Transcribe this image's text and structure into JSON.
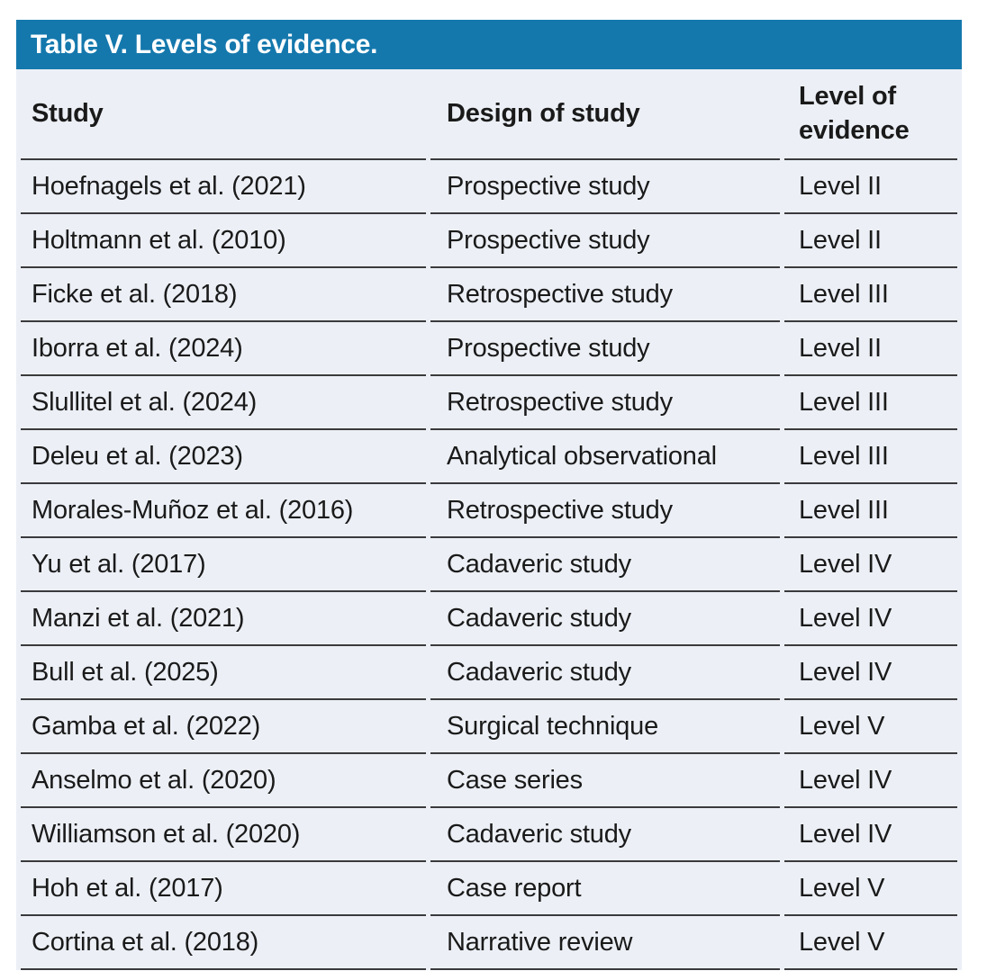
{
  "table": {
    "title": "Table V. Levels of evidence.",
    "columns": [
      "Study",
      "Design of study",
      "Level of evidence"
    ],
    "rows": [
      {
        "study": "Hoefnagels et al. (2021)",
        "design": "Prospective study",
        "level": "Level II"
      },
      {
        "study": "Holtmann et al. (2010)",
        "design": "Prospective study",
        "level": "Level II"
      },
      {
        "study": "Ficke et al. (2018)",
        "design": "Retrospective study",
        "level": "Level III"
      },
      {
        "study": "Iborra et al. (2024)",
        "design": "Prospective study",
        "level": "Level II"
      },
      {
        "study": "Slullitel et al. (2024)",
        "design": "Retrospective study",
        "level": "Level III"
      },
      {
        "study": "Deleu et al. (2023)",
        "design": "Analytical observational",
        "level": "Level III"
      },
      {
        "study": "Morales-Muñoz et al. (2016)",
        "design": "Retrospective study",
        "level": "Level III"
      },
      {
        "study": "Yu et al. (2017)",
        "design": "Cadaveric study",
        "level": "Level IV"
      },
      {
        "study": "Manzi et al. (2021)",
        "design": "Cadaveric study",
        "level": "Level IV"
      },
      {
        "study": "Bull et al. (2025)",
        "design": "Cadaveric study",
        "level": "Level IV"
      },
      {
        "study": "Gamba et al. (2022)",
        "design": "Surgical technique",
        "level": "Level V"
      },
      {
        "study": "Anselmo et al. (2020)",
        "design": "Case series",
        "level": "Level IV"
      },
      {
        "study": "Williamson et al. (2020)",
        "design": "Cadaveric study",
        "level": "Level IV"
      },
      {
        "study": "Hoh et al. (2017)",
        "design": "Case report",
        "level": "Level V"
      },
      {
        "study": "Cortina et al. (2018)",
        "design": "Narrative review",
        "level": "Level V"
      }
    ]
  },
  "colors": {
    "title_bar_bg": "#1478AD",
    "title_text": "#FFFFFF",
    "body_bg": "#ECF0F6",
    "row_line": "#3A3A3C",
    "body_text": "#1A1A1A"
  }
}
